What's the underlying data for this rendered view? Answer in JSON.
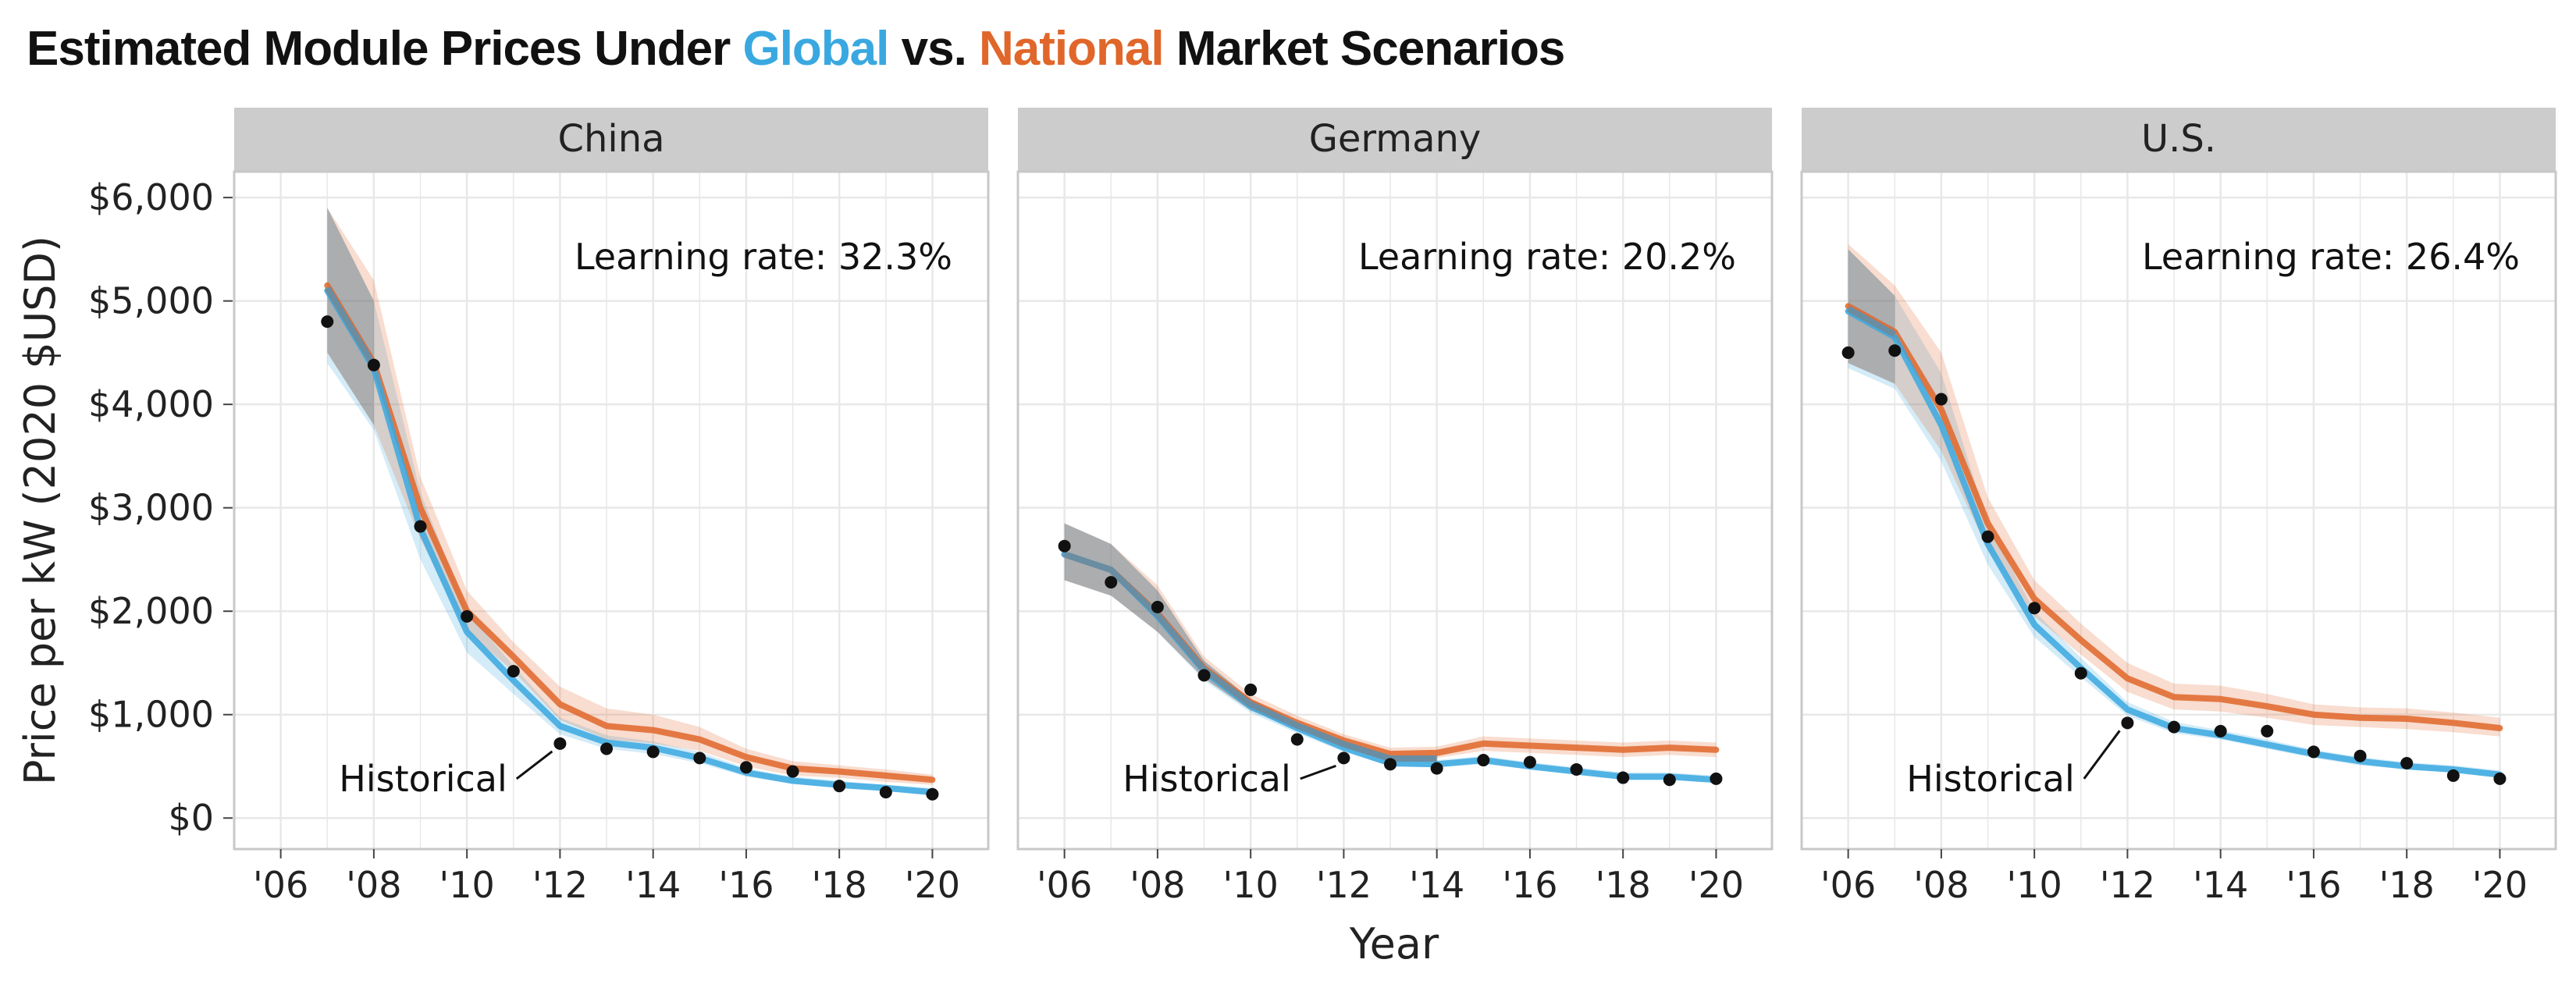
{
  "page": {
    "title_part1": "Estimated Module Prices Under ",
    "title_global": "Global",
    "title_part2": " vs. ",
    "title_national": "National",
    "title_part3": " Market Scenarios"
  },
  "colors": {
    "global": "#3aa8e0",
    "national": "#e0662a",
    "overlap": "#6a8da2",
    "historical": "#111111",
    "strip": "#cccccc",
    "grid": "#e8e8e8",
    "panel_border": "#c8c8c8"
  },
  "chart_data": {
    "type": "line",
    "title": "Estimated Module Prices Under Global vs. National Market Scenarios",
    "xlabel": "Year",
    "ylabel": "Price per kW (2020 $USD)",
    "xlim": [
      2005.0,
      2021.2
    ],
    "ylim": [
      -300,
      6250
    ],
    "y_ticks": [
      0,
      1000,
      2000,
      3000,
      4000,
      5000,
      6000
    ],
    "y_tick_labels": [
      "$0",
      "$1,000",
      "$2,000",
      "$3,000",
      "$4,000",
      "$5,000",
      "$6,000"
    ],
    "x_ticks": [
      2006,
      2008,
      2010,
      2012,
      2014,
      2016,
      2018,
      2020
    ],
    "x_tick_labels": [
      "'06",
      "'08",
      "'10",
      "'12",
      "'14",
      "'16",
      "'18",
      "'20"
    ],
    "grid": true,
    "historical_label": "Historical",
    "panels": [
      {
        "name": "China",
        "learning_rate_label": "Learning rate: 32.3%",
        "historical_label_pos": {
          "x": 2011.0,
          "y": 380
        },
        "historical_arrow_target": {
          "x": 2012,
          "y": 720
        },
        "historical": [
          {
            "x": 2007,
            "y": 4800
          },
          {
            "x": 2008,
            "y": 4380
          },
          {
            "x": 2009,
            "y": 2820
          },
          {
            "x": 2010,
            "y": 1950
          },
          {
            "x": 2011,
            "y": 1420
          },
          {
            "x": 2012,
            "y": 720
          },
          {
            "x": 2013,
            "y": 670
          },
          {
            "x": 2014,
            "y": 640
          },
          {
            "x": 2015,
            "y": 580
          },
          {
            "x": 2016,
            "y": 490
          },
          {
            "x": 2017,
            "y": 450
          },
          {
            "x": 2018,
            "y": 310
          },
          {
            "x": 2019,
            "y": 250
          },
          {
            "x": 2020,
            "y": 230
          }
        ],
        "series": [
          {
            "name": "Global",
            "x": [
              2007,
              2008,
              2009,
              2010,
              2011,
              2012,
              2013,
              2014,
              2015,
              2016,
              2017,
              2018,
              2019,
              2020
            ],
            "mean": [
              5100,
              4350,
              2800,
              1800,
              1330,
              890,
              730,
              680,
              580,
              440,
              360,
              320,
              290,
              250
            ],
            "lower": [
              4400,
              3750,
              2500,
              1600,
              1200,
              810,
              670,
              620,
              530,
              400,
              330,
              290,
              260,
              220
            ],
            "upper": [
              5900,
              5000,
              3150,
              2000,
              1470,
              970,
              800,
              740,
              640,
              480,
              400,
              360,
              320,
              290
            ]
          },
          {
            "name": "National",
            "x": [
              2007,
              2008,
              2009,
              2010,
              2011,
              2012,
              2013,
              2014,
              2015,
              2016,
              2017,
              2018,
              2019,
              2020
            ],
            "mean": [
              5150,
              4400,
              3000,
              2000,
              1560,
              1100,
              890,
              850,
              760,
              590,
              480,
              450,
              410,
              370
            ],
            "lower": [
              4500,
              3800,
              2700,
              1800,
              1420,
              950,
              760,
              720,
              650,
              500,
              410,
              390,
              350,
              320
            ],
            "upper": [
              5900,
              5200,
              3300,
              2200,
              1700,
              1270,
              1060,
              1000,
              880,
              670,
              550,
              510,
              470,
              420
            ]
          }
        ]
      },
      {
        "name": "Germany",
        "learning_rate_label": "Learning rate: 20.2%",
        "historical_label_pos": {
          "x": 2011.0,
          "y": 380
        },
        "historical_arrow_target": {
          "x": 2012,
          "y": 580
        },
        "historical": [
          {
            "x": 2006,
            "y": 2630
          },
          {
            "x": 2007,
            "y": 2280
          },
          {
            "x": 2008,
            "y": 2040
          },
          {
            "x": 2009,
            "y": 1380
          },
          {
            "x": 2010,
            "y": 1240
          },
          {
            "x": 2011,
            "y": 760
          },
          {
            "x": 2012,
            "y": 580
          },
          {
            "x": 2013,
            "y": 520
          },
          {
            "x": 2014,
            "y": 480
          },
          {
            "x": 2015,
            "y": 560
          },
          {
            "x": 2016,
            "y": 540
          },
          {
            "x": 2017,
            "y": 470
          },
          {
            "x": 2018,
            "y": 390
          },
          {
            "x": 2019,
            "y": 370
          },
          {
            "x": 2020,
            "y": 380
          }
        ],
        "series": [
          {
            "name": "Global",
            "x": [
              2006,
              2007,
              2008,
              2009,
              2010,
              2011,
              2012,
              2013,
              2014,
              2015,
              2016,
              2017,
              2018,
              2019,
              2020
            ],
            "mean": [
              2550,
              2400,
              1950,
              1420,
              1080,
              870,
              680,
              530,
              520,
              560,
              500,
              450,
              400,
              400,
              370
            ],
            "lower": [
              2300,
              2150,
              1800,
              1330,
              1020,
              820,
              640,
              500,
              490,
              520,
              470,
              420,
              370,
              370,
              340
            ],
            "upper": [
              2850,
              2650,
              2200,
              1520,
              1150,
              920,
              730,
              570,
              560,
              600,
              540,
              490,
              440,
              440,
              410
            ]
          },
          {
            "name": "National",
            "x": [
              2006,
              2007,
              2008,
              2009,
              2010,
              2011,
              2012,
              2013,
              2014,
              2015,
              2016,
              2017,
              2018,
              2019,
              2020
            ],
            "mean": [
              2550,
              2400,
              1980,
              1450,
              1120,
              920,
              750,
              620,
              630,
              720,
              700,
              680,
              660,
              680,
              660
            ],
            "lower": [
              2300,
              2150,
              1800,
              1350,
              1040,
              860,
              690,
              570,
              580,
              650,
              630,
              610,
              590,
              610,
              590
            ],
            "upper": [
              2850,
              2650,
              2250,
              1560,
              1200,
              990,
              810,
              680,
              690,
              790,
              770,
              750,
              730,
              750,
              730
            ]
          }
        ]
      },
      {
        "name": "U.S.",
        "learning_rate_label": "Learning rate: 26.4%",
        "historical_label_pos": {
          "x": 2011.0,
          "y": 380
        },
        "historical_arrow_target": {
          "x": 2012,
          "y": 920
        },
        "historical": [
          {
            "x": 2006,
            "y": 4500
          },
          {
            "x": 2007,
            "y": 4520
          },
          {
            "x": 2008,
            "y": 4050
          },
          {
            "x": 2009,
            "y": 2720
          },
          {
            "x": 2010,
            "y": 2030
          },
          {
            "x": 2011,
            "y": 1400
          },
          {
            "x": 2012,
            "y": 920
          },
          {
            "x": 2013,
            "y": 880
          },
          {
            "x": 2014,
            "y": 840
          },
          {
            "x": 2015,
            "y": 840
          },
          {
            "x": 2016,
            "y": 640
          },
          {
            "x": 2017,
            "y": 600
          },
          {
            "x": 2018,
            "y": 530
          },
          {
            "x": 2019,
            "y": 410
          },
          {
            "x": 2020,
            "y": 380
          }
        ],
        "series": [
          {
            "name": "Global",
            "x": [
              2006,
              2007,
              2008,
              2009,
              2010,
              2011,
              2012,
              2013,
              2014,
              2015,
              2016,
              2017,
              2018,
              2019,
              2020
            ],
            "mean": [
              4900,
              4650,
              3800,
              2650,
              1870,
              1450,
              1050,
              870,
              800,
              710,
              620,
              550,
              500,
              470,
              420
            ],
            "lower": [
              4350,
              4150,
              3450,
              2450,
              1750,
              1360,
              990,
              820,
              760,
              670,
              580,
              510,
              470,
              440,
              390
            ],
            "upper": [
              5500,
              5050,
              4300,
              2850,
              2000,
              1550,
              1120,
              930,
              850,
              760,
              660,
              590,
              540,
              510,
              460
            ]
          },
          {
            "name": "National",
            "x": [
              2006,
              2007,
              2008,
              2009,
              2010,
              2011,
              2012,
              2013,
              2014,
              2015,
              2016,
              2017,
              2018,
              2019,
              2020
            ],
            "mean": [
              4950,
              4700,
              3950,
              2850,
              2120,
              1720,
              1350,
              1170,
              1150,
              1080,
              1000,
              970,
              960,
              920,
              870
            ],
            "lower": [
              4400,
              4200,
              3550,
              2600,
              1950,
              1580,
              1220,
              1050,
              1030,
              970,
              900,
              880,
              860,
              830,
              790
            ],
            "upper": [
              5550,
              5150,
              4500,
              3100,
              2300,
              1880,
              1500,
              1300,
              1280,
              1200,
              1100,
              1070,
              1060,
              1020,
              970
            ]
          }
        ]
      }
    ]
  }
}
